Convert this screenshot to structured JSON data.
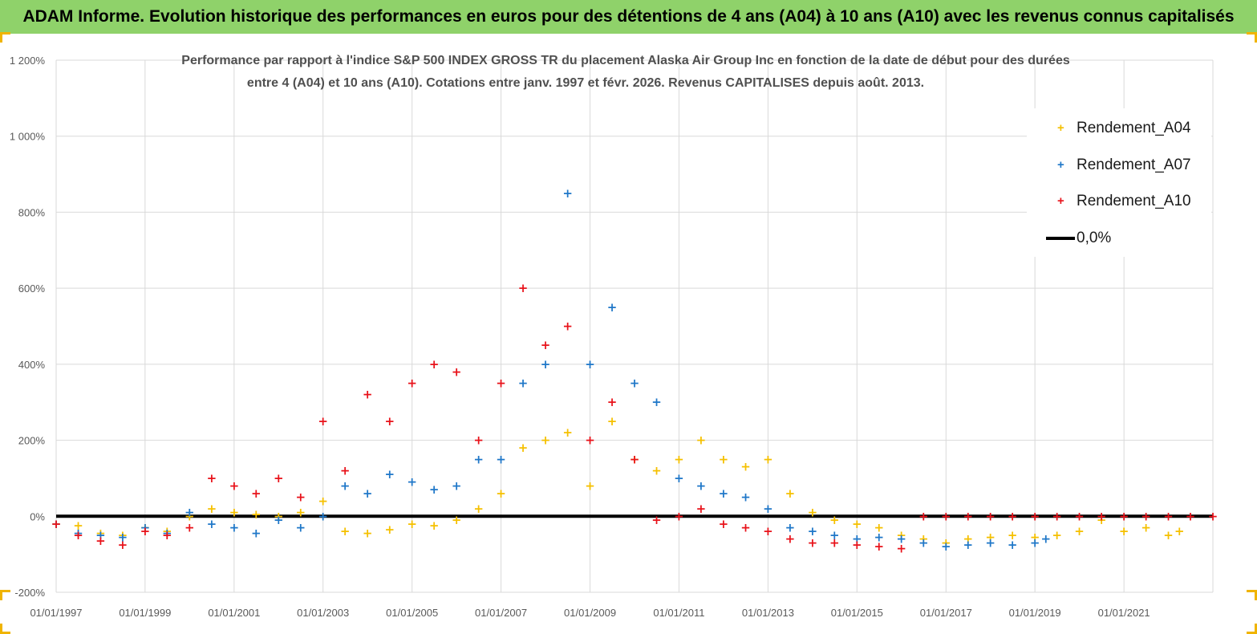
{
  "header": {
    "banner_title": "ADAM Informe. Evolution historique des performances en euros pour des détentions de 4 ans (A04) à 10 ans (A10) avec les revenus connus capitalisés"
  },
  "colors": {
    "banner": "#8fd26a",
    "A04": "#f5c000",
    "A07": "#1f77c8",
    "A10": "#e8121a",
    "zero": "#000000"
  },
  "chart_data": {
    "type": "scatter",
    "title_line1": "Performance par rapport à l'indice S&P 500 INDEX GROSS TR  du placement Alaska Air Group Inc en fonction de la date de début pour des durées",
    "title_line2": "entre 4 (A04) et 10 ans (A10). Cotations entre janv. 1997 et févr. 2026. Revenus CAPITALISES depuis août. 2013.",
    "xlabel": "",
    "ylabel": "",
    "ylim": [
      -200,
      1200
    ],
    "xlim": [
      "1997-01-01",
      "2023-01-01"
    ],
    "grid": true,
    "legend_position": "top-right",
    "y_ticks": [
      "-200%",
      "0%",
      "200%",
      "400%",
      "600%",
      "800%",
      "1 000%",
      "1 200%"
    ],
    "x_ticks": [
      "01/01/1997",
      "01/01/1999",
      "01/01/2001",
      "01/01/2003",
      "01/01/2005",
      "01/01/2007",
      "01/01/2009",
      "01/01/2011",
      "01/01/2013",
      "01/01/2015",
      "01/01/2017",
      "01/01/2019",
      "01/01/2021"
    ],
    "series": [
      {
        "name": "Rendement_A04",
        "x": [
          "1997-01-01",
          "1997-07-01",
          "1998-01-01",
          "1998-07-01",
          "1999-01-01",
          "1999-07-01",
          "2000-01-01",
          "2000-07-01",
          "2001-01-01",
          "2001-07-01",
          "2002-01-01",
          "2002-07-01",
          "2003-01-01",
          "2003-07-01",
          "2004-01-01",
          "2004-07-01",
          "2005-01-01",
          "2005-07-01",
          "2006-01-01",
          "2006-07-01",
          "2007-01-01",
          "2007-07-01",
          "2008-01-01",
          "2008-07-01",
          "2009-01-01",
          "2009-07-01",
          "2010-01-01",
          "2010-07-01",
          "2011-01-01",
          "2011-07-01",
          "2012-01-01",
          "2012-07-01",
          "2013-01-01",
          "2013-07-01",
          "2014-01-01",
          "2014-07-01",
          "2015-01-01",
          "2015-07-01",
          "2016-01-01",
          "2016-07-01",
          "2017-01-01",
          "2017-07-01",
          "2018-01-01",
          "2018-07-01",
          "2019-01-01",
          "2019-07-01",
          "2020-01-01",
          "2020-07-01",
          "2021-01-01",
          "2021-07-01",
          "2022-01-01",
          "2022-04-01"
        ],
        "y": [
          -20,
          -25,
          -45,
          -50,
          -30,
          -40,
          0,
          20,
          10,
          5,
          0,
          10,
          40,
          -40,
          -45,
          -35,
          -20,
          -25,
          -10,
          20,
          60,
          180,
          200,
          220,
          80,
          250,
          150,
          120,
          150,
          200,
          150,
          130,
          150,
          60,
          10,
          -10,
          -20,
          -30,
          -50,
          -60,
          -70,
          -60,
          -55,
          -50,
          -55,
          -50,
          -40,
          -10,
          -40,
          -30,
          -50,
          -40
        ]
      },
      {
        "name": "Rendement_A07",
        "x": [
          "1997-01-01",
          "1997-07-01",
          "1998-01-01",
          "1998-07-01",
          "1999-01-01",
          "1999-07-01",
          "2000-01-01",
          "2000-07-01",
          "2001-01-01",
          "2001-07-01",
          "2002-01-01",
          "2002-07-01",
          "2003-01-01",
          "2003-07-01",
          "2004-01-01",
          "2004-07-01",
          "2005-01-01",
          "2005-07-01",
          "2006-01-01",
          "2006-07-01",
          "2007-01-01",
          "2007-07-01",
          "2008-01-01",
          "2008-07-01",
          "2009-01-01",
          "2009-07-01",
          "2010-01-01",
          "2010-07-01",
          "2011-01-01",
          "2011-07-01",
          "2012-01-01",
          "2012-07-01",
          "2013-01-01",
          "2013-07-01",
          "2014-01-01",
          "2014-07-01",
          "2015-01-01",
          "2015-07-01",
          "2016-01-01",
          "2016-07-01",
          "2017-01-01",
          "2017-07-01",
          "2018-01-01",
          "2018-07-01",
          "2019-01-01",
          "2019-04-01"
        ],
        "y": [
          -20,
          -45,
          -50,
          -55,
          -30,
          -45,
          10,
          -20,
          -30,
          -45,
          -10,
          -30,
          0,
          80,
          60,
          110,
          90,
          70,
          80,
          150,
          150,
          350,
          400,
          850,
          400,
          550,
          350,
          300,
          100,
          80,
          60,
          50,
          20,
          -30,
          -40,
          -50,
          -60,
          -55,
          -60,
          -70,
          -80,
          -75,
          -70,
          -75,
          -70,
          -60
        ]
      },
      {
        "name": "Rendement_A10",
        "x": [
          "1997-01-01",
          "1997-07-01",
          "1998-01-01",
          "1998-07-01",
          "1999-01-01",
          "1999-07-01",
          "2000-01-01",
          "2000-07-01",
          "2001-01-01",
          "2001-07-01",
          "2002-01-01",
          "2002-07-01",
          "2003-01-01",
          "2003-07-01",
          "2004-01-01",
          "2004-07-01",
          "2005-01-01",
          "2005-07-01",
          "2006-01-01",
          "2006-07-01",
          "2007-01-01",
          "2007-07-01",
          "2008-01-01",
          "2008-07-01",
          "2009-01-01",
          "2009-07-01",
          "2010-01-01",
          "2010-07-01",
          "2011-01-01",
          "2011-07-01",
          "2012-01-01",
          "2012-07-01",
          "2013-01-01",
          "2013-07-01",
          "2014-01-01",
          "2014-07-01",
          "2015-01-01",
          "2015-07-01",
          "2016-01-01",
          "2016-07-01",
          "2017-01-01",
          "2017-07-01",
          "2018-01-01",
          "2018-07-01",
          "2019-01-01",
          "2019-07-01",
          "2020-01-01",
          "2020-07-01",
          "2021-01-01",
          "2021-07-01",
          "2022-01-01",
          "2022-07-01",
          "2023-01-01"
        ],
        "y": [
          -20,
          -50,
          -65,
          -75,
          -40,
          -50,
          -30,
          100,
          80,
          60,
          100,
          50,
          250,
          120,
          320,
          250,
          350,
          400,
          380,
          200,
          350,
          600,
          450,
          500,
          200,
          300,
          150,
          -10,
          0,
          20,
          -20,
          -30,
          -40,
          -60,
          -70,
          -70,
          -75,
          -80,
          -85,
          0,
          0,
          0,
          0,
          0,
          0,
          0,
          0,
          0,
          0,
          0,
          0,
          0,
          0
        ]
      },
      {
        "name": "0,0%",
        "x": [
          "1997-01-01",
          "2023-01-01"
        ],
        "y": [
          0,
          0
        ]
      }
    ]
  }
}
